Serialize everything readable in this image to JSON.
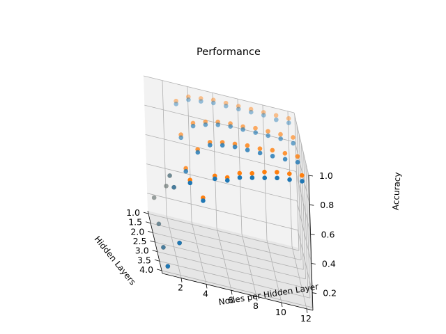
{
  "chart_data": {
    "type": "scatter",
    "projection": "3d",
    "title": "Performance",
    "xlabel": "Nodes per Hidden Layer",
    "ylabel": "Hidden Layers",
    "zlabel": "Accuracy",
    "xlim": [
      1,
      12
    ],
    "ylim": [
      1,
      4
    ],
    "zlim": [
      0.1,
      1.0
    ],
    "xticks": [
      "2",
      "4",
      "6",
      "8",
      "10",
      "12"
    ],
    "yticks": [
      "1.0",
      "1.5",
      "2.0",
      "2.5",
      "3.0",
      "3.5",
      "4.0"
    ],
    "zticks": [
      "0.2",
      "0.4",
      "0.6",
      "0.8",
      "1.0"
    ],
    "grid": true,
    "series": [
      {
        "color": "#ff7f0e",
        "points": [
          {
            "x": 1,
            "y": 1,
            "z": 0.2
          },
          {
            "x": 2,
            "y": 1,
            "z": 0.3
          },
          {
            "x": 3,
            "y": 1,
            "z": 0.9
          },
          {
            "x": 4,
            "y": 1,
            "z": 0.95
          },
          {
            "x": 5,
            "y": 1,
            "z": 0.96
          },
          {
            "x": 6,
            "y": 1,
            "z": 0.97
          },
          {
            "x": 7,
            "y": 1,
            "z": 0.97
          },
          {
            "x": 8,
            "y": 1,
            "z": 0.97
          },
          {
            "x": 9,
            "y": 1,
            "z": 0.97
          },
          {
            "x": 10,
            "y": 1,
            "z": 0.97
          },
          {
            "x": 11,
            "y": 1,
            "z": 0.97
          },
          {
            "x": 12,
            "y": 1,
            "z": 0.97
          },
          {
            "x": 1,
            "y": 2,
            "z": 0.15
          },
          {
            "x": 2,
            "y": 2,
            "z": 0.5
          },
          {
            "x": 3,
            "y": 2,
            "z": 0.8
          },
          {
            "x": 4,
            "y": 2,
            "z": 0.9
          },
          {
            "x": 5,
            "y": 2,
            "z": 0.93
          },
          {
            "x": 6,
            "y": 2,
            "z": 0.95
          },
          {
            "x": 7,
            "y": 2,
            "z": 0.96
          },
          {
            "x": 8,
            "y": 2,
            "z": 0.96
          },
          {
            "x": 9,
            "y": 2,
            "z": 0.97
          },
          {
            "x": 10,
            "y": 2,
            "z": 0.97
          },
          {
            "x": 11,
            "y": 2,
            "z": 0.97
          },
          {
            "x": 12,
            "y": 2,
            "z": 0.97
          },
          {
            "x": 1,
            "y": 3,
            "z": 0.12
          },
          {
            "x": 2,
            "y": 3,
            "z": 0.55
          },
          {
            "x": 3,
            "y": 3,
            "z": 0.7
          },
          {
            "x": 4,
            "y": 3,
            "z": 0.85
          },
          {
            "x": 5,
            "y": 3,
            "z": 0.92
          },
          {
            "x": 6,
            "y": 3,
            "z": 0.94
          },
          {
            "x": 7,
            "y": 3,
            "z": 0.95
          },
          {
            "x": 8,
            "y": 3,
            "z": 0.96
          },
          {
            "x": 9,
            "y": 3,
            "z": 0.96
          },
          {
            "x": 10,
            "y": 3,
            "z": 0.97
          },
          {
            "x": 11,
            "y": 3,
            "z": 0.97
          },
          {
            "x": 12,
            "y": 3,
            "z": 0.97
          },
          {
            "x": 1,
            "y": 4,
            "z": 0.12
          },
          {
            "x": 2,
            "y": 4,
            "z": 0.3
          },
          {
            "x": 3,
            "y": 4,
            "z": 0.75
          },
          {
            "x": 4,
            "y": 4,
            "z": 0.65
          },
          {
            "x": 5,
            "y": 4,
            "z": 0.82
          },
          {
            "x": 6,
            "y": 4,
            "z": 0.83
          },
          {
            "x": 7,
            "y": 4,
            "z": 0.88
          },
          {
            "x": 8,
            "y": 4,
            "z": 0.9
          },
          {
            "x": 9,
            "y": 4,
            "z": 0.93
          },
          {
            "x": 10,
            "y": 4,
            "z": 0.95
          },
          {
            "x": 11,
            "y": 4,
            "z": 0.96
          },
          {
            "x": 12,
            "y": 4,
            "z": 0.97
          }
        ]
      },
      {
        "color": "#1f77b4",
        "points": [
          {
            "x": 1,
            "y": 1,
            "z": 0.2
          },
          {
            "x": 2,
            "y": 1,
            "z": 0.3
          },
          {
            "x": 3,
            "y": 1,
            "z": 0.88
          },
          {
            "x": 4,
            "y": 1,
            "z": 0.93
          },
          {
            "x": 5,
            "y": 1,
            "z": 0.94
          },
          {
            "x": 6,
            "y": 1,
            "z": 0.95
          },
          {
            "x": 7,
            "y": 1,
            "z": 0.95
          },
          {
            "x": 8,
            "y": 1,
            "z": 0.95
          },
          {
            "x": 9,
            "y": 1,
            "z": 0.95
          },
          {
            "x": 10,
            "y": 1,
            "z": 0.95
          },
          {
            "x": 11,
            "y": 1,
            "z": 0.94
          },
          {
            "x": 12,
            "y": 1,
            "z": 0.94
          },
          {
            "x": 1,
            "y": 2,
            "z": 0.15
          },
          {
            "x": 2,
            "y": 2,
            "z": 0.5
          },
          {
            "x": 3,
            "y": 2,
            "z": 0.78
          },
          {
            "x": 4,
            "y": 2,
            "z": 0.88
          },
          {
            "x": 5,
            "y": 2,
            "z": 0.91
          },
          {
            "x": 6,
            "y": 2,
            "z": 0.93
          },
          {
            "x": 7,
            "y": 2,
            "z": 0.94
          },
          {
            "x": 8,
            "y": 2,
            "z": 0.94
          },
          {
            "x": 9,
            "y": 2,
            "z": 0.94
          },
          {
            "x": 10,
            "y": 2,
            "z": 0.94
          },
          {
            "x": 11,
            "y": 2,
            "z": 0.94
          },
          {
            "x": 12,
            "y": 2,
            "z": 0.93
          },
          {
            "x": 1,
            "y": 3,
            "z": 0.12
          },
          {
            "x": 2,
            "y": 3,
            "z": 0.55
          },
          {
            "x": 3,
            "y": 3,
            "z": 0.68
          },
          {
            "x": 4,
            "y": 3,
            "z": 0.83
          },
          {
            "x": 5,
            "y": 3,
            "z": 0.9
          },
          {
            "x": 6,
            "y": 3,
            "z": 0.92
          },
          {
            "x": 7,
            "y": 3,
            "z": 0.93
          },
          {
            "x": 8,
            "y": 3,
            "z": 0.93
          },
          {
            "x": 9,
            "y": 3,
            "z": 0.93
          },
          {
            "x": 10,
            "y": 3,
            "z": 0.93
          },
          {
            "x": 11,
            "y": 3,
            "z": 0.93
          },
          {
            "x": 12,
            "y": 3,
            "z": 0.93
          },
          {
            "x": 1,
            "y": 4,
            "z": 0.12
          },
          {
            "x": 2,
            "y": 4,
            "z": 0.3
          },
          {
            "x": 3,
            "y": 4,
            "z": 0.73
          },
          {
            "x": 4,
            "y": 4,
            "z": 0.63
          },
          {
            "x": 5,
            "y": 4,
            "z": 0.8
          },
          {
            "x": 6,
            "y": 4,
            "z": 0.81
          },
          {
            "x": 7,
            "y": 4,
            "z": 0.85
          },
          {
            "x": 8,
            "y": 4,
            "z": 0.87
          },
          {
            "x": 9,
            "y": 4,
            "z": 0.89
          },
          {
            "x": 10,
            "y": 4,
            "z": 0.91
          },
          {
            "x": 11,
            "y": 4,
            "z": 0.92
          },
          {
            "x": 12,
            "y": 4,
            "z": 0.93
          }
        ]
      }
    ]
  }
}
